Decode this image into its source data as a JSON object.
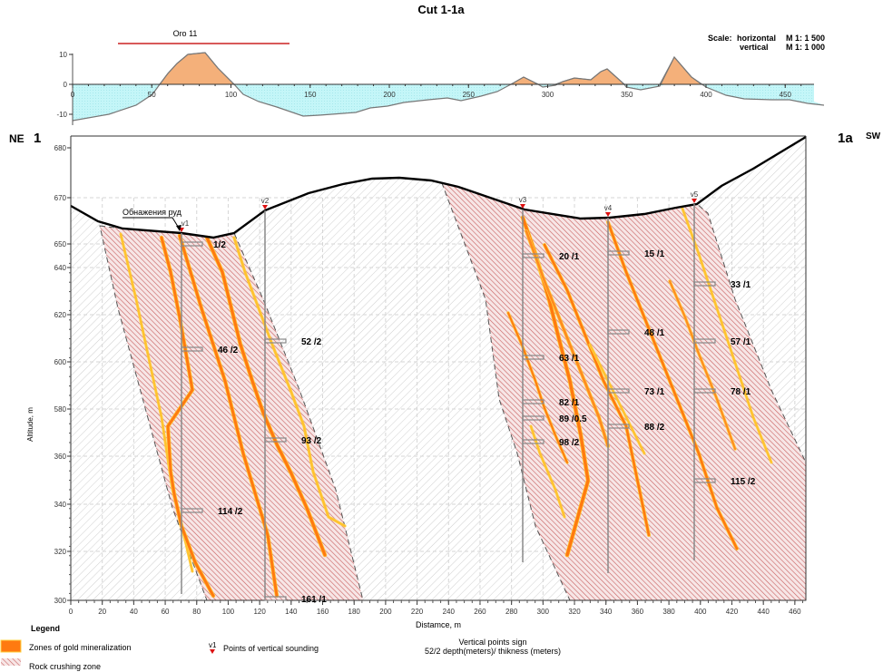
{
  "title": "Cut 1-1a",
  "scale": {
    "label": "Scale:",
    "rows": [
      {
        "axis": "horizontal",
        "value": "M 1: 1 500"
      },
      {
        "axis": "vertical",
        "value": "M 1: 1 000"
      }
    ]
  },
  "ends": {
    "left_dir": "NE",
    "left_num": "1",
    "right_num": "1a",
    "right_dir": "SW"
  },
  "top_profile": {
    "bar_label": "Oro 11",
    "bar_color": "#cc2222",
    "positive_color": "#f4b07a",
    "negative_color": "#c8f8f8",
    "yticks": [
      "10",
      "0",
      "-10"
    ],
    "xticks": [
      "0",
      "50",
      "100",
      "150",
      "200",
      "250",
      "300",
      "350",
      "400",
      "450"
    ]
  },
  "section": {
    "ylabel": "Altitude, m",
    "xlabel": "Distamce, m",
    "yticks": [
      "680",
      "670",
      "650",
      "640",
      "620",
      "600",
      "580",
      "360",
      "340",
      "320",
      "300"
    ],
    "xticks": [
      "0",
      "20",
      "40",
      "60",
      "80",
      "100",
      "120",
      "140",
      "160",
      "180",
      "200",
      "220",
      "240",
      "260",
      "280",
      "300",
      "320",
      "340",
      "360",
      "380",
      "400",
      "420",
      "440",
      "460"
    ],
    "outcrop_label": "Обнажения руд",
    "soundings": [
      {
        "name": "v1",
        "samples": [
          "1/2",
          "46 /2",
          "114 /2"
        ]
      },
      {
        "name": "v2",
        "samples": [
          "52 /2",
          "93 /2",
          "161 /1"
        ]
      },
      {
        "name": "v3",
        "samples": [
          "20 /1",
          "63 /1",
          "82 /1",
          "89 /0.5",
          "98 /2"
        ]
      },
      {
        "name": "v4",
        "samples": [
          "15 /1",
          "48 /1",
          "73 /1",
          "88 /2"
        ]
      },
      {
        "name": "v5",
        "samples": [
          "33 /1",
          "57 /1",
          "78 /1",
          "115 /2"
        ]
      }
    ],
    "colors": {
      "mineralization": "#ff7a10",
      "mineralization_edge": "#ffd040",
      "crush_hatch": "#c86060",
      "marker": "#dd1111"
    }
  },
  "legend": {
    "title": "Legend",
    "items": [
      {
        "icon": "orange-swatch",
        "label": "Zones of gold mineralization"
      },
      {
        "icon": "hatch-swatch",
        "label": "Rock crushing zone"
      },
      {
        "icon": "red-triangle-marker",
        "marker_label": "v1",
        "label": "Points of vertical sounding"
      }
    ],
    "sign_title": "Vertical points sign",
    "sign_example": "52/2  depth(meters)/ thikness (meters)"
  }
}
